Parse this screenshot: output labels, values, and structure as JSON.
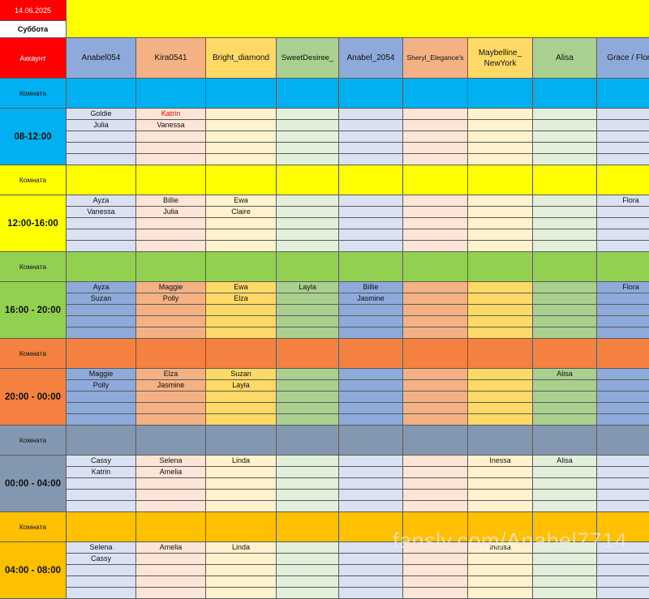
{
  "date": "14.06.2025",
  "weekday": "Суббота",
  "account_label": "Аккаунт",
  "room_label": "Комната",
  "watermark": "fansly.com/Anabel7714",
  "accounts": [
    {
      "name": "Anabel054",
      "color": "#8eaadb",
      "light": "#d9e1f2"
    },
    {
      "name": "Kira0541",
      "color": "#f4b183",
      "light": "#fce4d6"
    },
    {
      "name": "Bright_diamond",
      "color": "#ffd966",
      "light": "#fff2cc"
    },
    {
      "name": "SweetDesiree_",
      "color": "#a9d08e",
      "light": "#e2efda"
    },
    {
      "name": "Anabel_2054",
      "color": "#8eaadb",
      "light": "#d9e1f2"
    },
    {
      "name": "Sheryl_Elegance's",
      "color": "#f4b183",
      "light": "#fce4d6"
    },
    {
      "name": "Maybelline_ NewYork",
      "color": "#ffd966",
      "light": "#fff2cc"
    },
    {
      "name": "Alisa",
      "color": "#a9d08e",
      "light": "#e2efda"
    },
    {
      "name": "Grace / Flora",
      "color": "#8eaadb",
      "light": "#d9e1f2"
    }
  ],
  "colors": {
    "date_bg": "#ff0000",
    "date_text": "#ffffff",
    "banner_bg": "#ffff00",
    "weekday_bg": "#ffffff",
    "account_bg": "#ff0000",
    "account_text": "#ffffff",
    "highlight_name": "#ff0000"
  },
  "shifts": [
    {
      "time": "08-12:00",
      "color": "#00b0f0",
      "full_color": false,
      "rows": [
        [
          "Goldie",
          "Katrin",
          "",
          "",
          "",
          "",
          "",
          "",
          ""
        ],
        [
          "Julia",
          "Vanessa",
          "",
          "",
          "",
          "",
          "",
          "",
          ""
        ],
        [
          "",
          "",
          "",
          "",
          "",
          "",
          "",
          "",
          ""
        ],
        [
          "",
          "",
          "",
          "",
          "",
          "",
          "",
          "",
          ""
        ],
        [
          "",
          "",
          "",
          "",
          "",
          "",
          "",
          "",
          ""
        ]
      ],
      "highlight": [
        [
          0,
          1
        ]
      ]
    },
    {
      "time": "12:00-16:00",
      "color": "#ffff00",
      "full_color": false,
      "rows": [
        [
          "Ayza",
          "Billie",
          "Ewa",
          "",
          "",
          "",
          "",
          "",
          "Flora"
        ],
        [
          "Vanessa",
          "Julia",
          "Claire",
          "",
          "",
          "",
          "",
          "",
          ""
        ],
        [
          "",
          "",
          "",
          "",
          "",
          "",
          "",
          "",
          ""
        ],
        [
          "",
          "",
          "",
          "",
          "",
          "",
          "",
          "",
          ""
        ],
        [
          "",
          "",
          "",
          "",
          "",
          "",
          "",
          "",
          ""
        ]
      ]
    },
    {
      "time": "16:00 - 20:00",
      "color": "#92d050",
      "full_color": true,
      "rows": [
        [
          "Ayza",
          "Maggie",
          "Ewa",
          "Layla",
          "Billie",
          "",
          "",
          "",
          "Flora"
        ],
        [
          "Suzan",
          "Polly",
          "Elza",
          "",
          "Jasmine",
          "",
          "",
          "",
          ""
        ],
        [
          "",
          "",
          "",
          "",
          "",
          "",
          "",
          "",
          ""
        ],
        [
          "",
          "",
          "",
          "",
          "",
          "",
          "",
          "",
          ""
        ],
        [
          "",
          "",
          "",
          "",
          "",
          "",
          "",
          "",
          ""
        ]
      ]
    },
    {
      "time": "20:00 - 00:00",
      "color": "#f4813f",
      "full_color": true,
      "rows": [
        [
          "Maggie",
          "Elza",
          "Suzan",
          "",
          "",
          "",
          "",
          "Alisa",
          ""
        ],
        [
          "Polly",
          "Jasmine",
          "Layla",
          "",
          "",
          "",
          "",
          "",
          ""
        ],
        [
          "",
          "",
          "",
          "",
          "",
          "",
          "",
          "",
          ""
        ],
        [
          "",
          "",
          "",
          "",
          "",
          "",
          "",
          "",
          ""
        ],
        [
          "",
          "",
          "",
          "",
          "",
          "",
          "",
          "",
          ""
        ]
      ]
    },
    {
      "time": "00:00 - 04:00",
      "color": "#8497b0",
      "full_color": false,
      "rows": [
        [
          "Cassy",
          "Selena",
          "Linda",
          "",
          "",
          "",
          "Inessa",
          "Alisa",
          ""
        ],
        [
          "Katrin",
          "Amelia",
          "",
          "",
          "",
          "",
          "",
          "",
          ""
        ],
        [
          "",
          "",
          "",
          "",
          "",
          "",
          "",
          "",
          ""
        ],
        [
          "",
          "",
          "",
          "",
          "",
          "",
          "",
          "",
          ""
        ],
        [
          "",
          "",
          "",
          "",
          "",
          "",
          "",
          "",
          ""
        ]
      ]
    },
    {
      "time": "04:00 - 08:00",
      "color": "#ffc000",
      "full_color": false,
      "rows": [
        [
          "Selena",
          "Amelia",
          "Linda",
          "",
          "",
          "",
          "Inessa",
          "",
          ""
        ],
        [
          "Cassy",
          "",
          "",
          "",
          "",
          "",
          "",
          "",
          ""
        ]
      ]
    }
  ]
}
